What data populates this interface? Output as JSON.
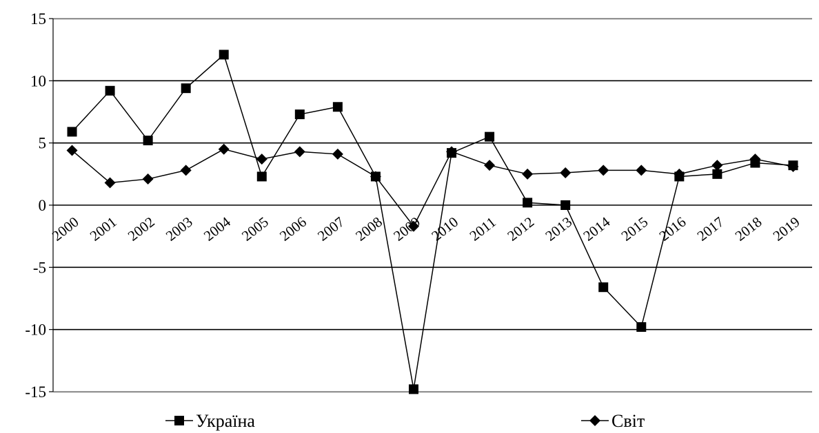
{
  "chart_data": {
    "type": "line",
    "title": "",
    "xlabel": "",
    "ylabel": "",
    "categories": [
      "2000",
      "2001",
      "2002",
      "2003",
      "2004",
      "2005",
      "2006",
      "2007",
      "2008",
      "2009",
      "2010",
      "2011",
      "2012",
      "2013",
      "2014",
      "2015",
      "2016",
      "2017",
      "2018",
      "2019"
    ],
    "ylim": [
      -15,
      15
    ],
    "y_ticks": [
      15,
      10,
      5,
      0,
      -5,
      -10,
      -15
    ],
    "grid": "horizontal",
    "legend_position": "bottom",
    "series": [
      {
        "name": "Україна",
        "marker": "square",
        "color": "#000000",
        "values": [
          5.9,
          9.2,
          5.2,
          9.4,
          12.1,
          2.3,
          7.3,
          7.9,
          2.3,
          -14.8,
          4.2,
          5.5,
          0.2,
          0.0,
          -6.6,
          -9.8,
          2.3,
          2.5,
          3.4,
          3.2
        ]
      },
      {
        "name": "Світ",
        "marker": "diamond",
        "color": "#000000",
        "values": [
          4.4,
          1.8,
          2.1,
          2.8,
          4.5,
          3.7,
          4.3,
          4.1,
          2.3,
          -1.7,
          4.3,
          3.2,
          2.5,
          2.6,
          2.8,
          2.8,
          2.5,
          3.2,
          3.7,
          3.1
        ]
      }
    ]
  }
}
